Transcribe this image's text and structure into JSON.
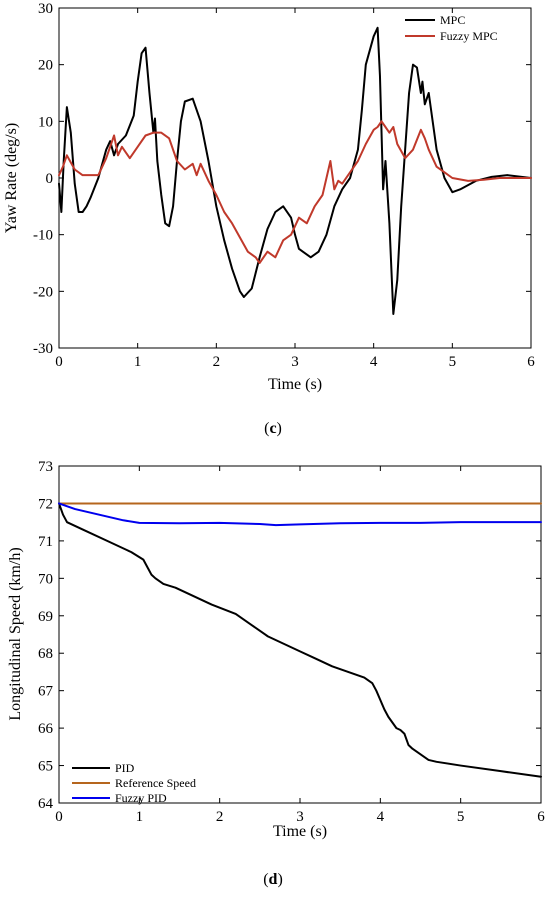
{
  "chart_data": [
    {
      "type": "line",
      "xlabel": "Time (s)",
      "ylabel": "Yaw Rate (deg/s)",
      "xlim": [
        0,
        6
      ],
      "ylim": [
        -30,
        30
      ],
      "xticks": [
        "0",
        "1",
        "2",
        "3",
        "4",
        "5",
        "6"
      ],
      "yticks": [
        "30",
        "20",
        "10",
        "0",
        "-10",
        "-20",
        "-30"
      ],
      "grid": false,
      "legend_position": "top-right",
      "panel_label": "c",
      "series": [
        {
          "name": "MPC",
          "color": "#000000",
          "x": [
            0,
            0.03,
            0.06,
            0.1,
            0.15,
            0.2,
            0.25,
            0.3,
            0.35,
            0.4,
            0.5,
            0.6,
            0.65,
            0.7,
            0.75,
            0.85,
            0.95,
            1.0,
            1.05,
            1.1,
            1.15,
            1.2,
            1.22,
            1.25,
            1.3,
            1.35,
            1.4,
            1.45,
            1.5,
            1.55,
            1.6,
            1.7,
            1.8,
            1.9,
            2.0,
            2.1,
            2.2,
            2.3,
            2.35,
            2.45,
            2.55,
            2.65,
            2.75,
            2.85,
            2.95,
            3.0,
            3.05,
            3.1,
            3.2,
            3.3,
            3.4,
            3.5,
            3.6,
            3.7,
            3.8,
            3.85,
            3.9,
            4.0,
            4.05,
            4.08,
            4.12,
            4.15,
            4.2,
            4.25,
            4.3,
            4.35,
            4.4,
            4.45,
            4.5,
            4.55,
            4.6,
            4.62,
            4.65,
            4.7,
            4.75,
            4.8,
            4.9,
            5.0,
            5.1,
            5.3,
            5.5,
            5.7,
            6.0
          ],
          "y": [
            -1,
            -6,
            3,
            12.5,
            8,
            -1,
            -6,
            -6,
            -5,
            -3.5,
            0,
            5,
            6.5,
            4,
            6,
            7.5,
            11,
            17,
            22,
            23,
            15,
            8,
            10.5,
            3,
            -3,
            -8,
            -8.5,
            -5,
            3,
            10,
            13.5,
            14,
            10,
            3,
            -5,
            -11,
            -16,
            -20,
            -21,
            -19.5,
            -14,
            -9,
            -6,
            -5,
            -7,
            -10,
            -12.5,
            -13,
            -14,
            -13,
            -10,
            -5,
            -2,
            0,
            5,
            12,
            20,
            25,
            26.5,
            18,
            -2,
            3,
            -8,
            -24,
            -18,
            -5,
            5,
            15,
            20,
            19.5,
            15,
            17,
            13,
            15,
            10,
            5,
            0,
            -2.5,
            -2,
            -0.5,
            0.2,
            0.5,
            0
          ]
        },
        {
          "name": "Fuzzy MPC",
          "color": "#c0392b",
          "x": [
            0,
            0.05,
            0.1,
            0.2,
            0.3,
            0.4,
            0.5,
            0.6,
            0.7,
            0.75,
            0.8,
            0.9,
            1.0,
            1.1,
            1.2,
            1.3,
            1.4,
            1.5,
            1.6,
            1.7,
            1.75,
            1.8,
            1.9,
            2.0,
            2.1,
            2.2,
            2.3,
            2.4,
            2.5,
            2.55,
            2.65,
            2.75,
            2.85,
            2.95,
            3.05,
            3.15,
            3.25,
            3.35,
            3.45,
            3.5,
            3.55,
            3.6,
            3.7,
            3.8,
            3.9,
            4.0,
            4.05,
            4.1,
            4.15,
            4.2,
            4.25,
            4.3,
            4.4,
            4.5,
            4.6,
            4.65,
            4.7,
            4.8,
            4.9,
            5.0,
            5.2,
            5.4,
            5.6,
            6.0
          ],
          "y": [
            0.5,
            2,
            4,
            1.5,
            0.5,
            0.5,
            0.5,
            3.5,
            7.5,
            4,
            5.5,
            3.5,
            5.5,
            7.5,
            8,
            8,
            7,
            3,
            1.5,
            2.5,
            0.5,
            2.5,
            -0.5,
            -3,
            -6,
            -8,
            -10.5,
            -13,
            -14,
            -15,
            -13,
            -14,
            -11,
            -10,
            -7,
            -8,
            -5,
            -3,
            3,
            -2,
            -0.5,
            -1,
            1,
            3,
            6,
            8.5,
            9,
            10,
            9,
            8,
            9,
            6,
            3.5,
            5,
            8.5,
            7,
            5,
            2,
            1,
            0,
            -0.5,
            -0.3,
            0,
            0
          ]
        }
      ]
    },
    {
      "type": "line",
      "xlabel": "Time (s)",
      "ylabel": "Longitudinal Speed (km/h)",
      "xlim": [
        0,
        6
      ],
      "ylim": [
        64,
        73
      ],
      "xticks": [
        "0",
        "1",
        "2",
        "3",
        "4",
        "5",
        "6"
      ],
      "yticks": [
        "73",
        "72",
        "71",
        "70",
        "69",
        "68",
        "67",
        "66",
        "65",
        "64"
      ],
      "grid": false,
      "legend_position": "bottom-left",
      "panel_label": "d",
      "series": [
        {
          "name": "PID",
          "color": "#000000",
          "x": [
            0,
            0.05,
            0.1,
            0.3,
            0.6,
            0.9,
            1.05,
            1.1,
            1.15,
            1.2,
            1.3,
            1.45,
            1.6,
            1.9,
            2.2,
            2.4,
            2.6,
            2.8,
            3.0,
            3.2,
            3.4,
            3.6,
            3.8,
            3.9,
            3.95,
            4.0,
            4.05,
            4.1,
            4.2,
            4.25,
            4.3,
            4.35,
            4.4,
            4.5,
            4.6,
            4.7,
            5.0,
            5.5,
            6.0
          ],
          "y": [
            72,
            71.7,
            71.5,
            71.3,
            71.0,
            70.7,
            70.5,
            70.3,
            70.1,
            70.0,
            69.85,
            69.75,
            69.6,
            69.3,
            69.05,
            68.75,
            68.45,
            68.25,
            68.05,
            67.85,
            67.65,
            67.5,
            67.35,
            67.2,
            67.0,
            66.75,
            66.5,
            66.3,
            66.0,
            65.95,
            65.85,
            65.55,
            65.45,
            65.3,
            65.15,
            65.1,
            65.0,
            64.85,
            64.7
          ]
        },
        {
          "name": "Reference Speed",
          "color": "#b5651d",
          "x": [
            0,
            6
          ],
          "y": [
            72,
            72
          ]
        },
        {
          "name": "Fuzzy PID",
          "color": "#0000ee",
          "x": [
            0,
            0.2,
            0.5,
            0.8,
            1.0,
            1.5,
            2.0,
            2.5,
            2.7,
            3.0,
            3.5,
            4.0,
            4.5,
            5.0,
            5.5,
            6.0
          ],
          "y": [
            72,
            71.85,
            71.7,
            71.55,
            71.48,
            71.47,
            71.48,
            71.45,
            71.42,
            71.44,
            71.47,
            71.48,
            71.48,
            71.5,
            71.5,
            71.5
          ]
        }
      ]
    }
  ]
}
